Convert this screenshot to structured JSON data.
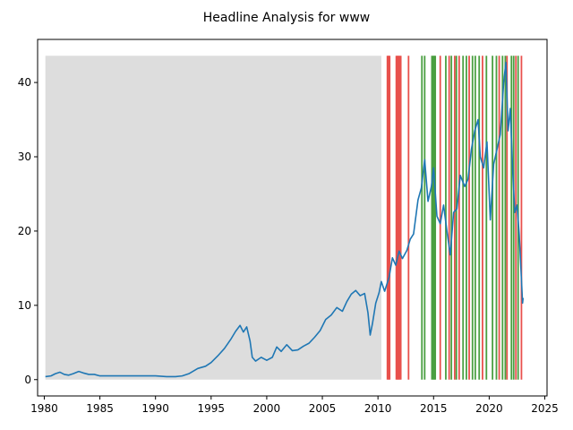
{
  "chart_data": {
    "type": "line",
    "title": "Headline Analysis for www",
    "xlabel": "",
    "ylabel": "",
    "xlim": [
      1979.4,
      2025.2
    ],
    "ylim": [
      -2.2,
      45.8
    ],
    "x_ticks": [
      1980,
      1985,
      1990,
      1995,
      2000,
      2005,
      2010,
      2015,
      2020,
      2025
    ],
    "y_ticks": [
      0,
      10,
      20,
      30,
      40
    ],
    "grid": false,
    "legend": "none",
    "gray_region": {
      "x_start": 1980.1,
      "x_end": 2010.3,
      "y_top": 43.6,
      "color": "#dddddd"
    },
    "red_lines": [
      2010.85,
      2010.95,
      2011.05,
      2011.65,
      2011.75,
      2011.85,
      2011.95,
      2012.05,
      2012.75,
      2015.6,
      2016.4,
      2016.9,
      2017.3,
      2018.2,
      2019.4,
      2020.9,
      2021.6,
      2022.4,
      2022.9
    ],
    "green_lines": [
      2013.95,
      2014.2,
      2014.85,
      2014.95,
      2015.05,
      2015.15,
      2016.1,
      2016.6,
      2017.05,
      2017.65,
      2017.95,
      2018.5,
      2018.75,
      2019.1,
      2019.75,
      2020.3,
      2020.65,
      2021.2,
      2021.45,
      2022.0,
      2022.2,
      2022.6
    ],
    "colors": {
      "line": "#1f77b4",
      "red": "#e8514d",
      "green": "#4a9f41",
      "gray": "#dddddd"
    },
    "series": [
      {
        "values": [
          [
            1980.1,
            0.4
          ],
          [
            1980.6,
            0.5
          ],
          [
            1981.0,
            0.8
          ],
          [
            1981.4,
            1.0
          ],
          [
            1981.8,
            0.7
          ],
          [
            1982.2,
            0.6
          ],
          [
            1982.6,
            0.8
          ],
          [
            1983.1,
            1.1
          ],
          [
            1983.5,
            0.9
          ],
          [
            1984.0,
            0.7
          ],
          [
            1984.5,
            0.7
          ],
          [
            1985.0,
            0.5
          ],
          [
            1986.0,
            0.5
          ],
          [
            1987.0,
            0.5
          ],
          [
            1988.0,
            0.5
          ],
          [
            1989.0,
            0.5
          ],
          [
            1990.0,
            0.5
          ],
          [
            1991.0,
            0.4
          ],
          [
            1991.8,
            0.4
          ],
          [
            1992.4,
            0.5
          ],
          [
            1993.0,
            0.8
          ],
          [
            1993.8,
            1.5
          ],
          [
            1994.5,
            1.8
          ],
          [
            1995.0,
            2.3
          ],
          [
            1995.6,
            3.2
          ],
          [
            1996.2,
            4.2
          ],
          [
            1996.8,
            5.5
          ],
          [
            1997.2,
            6.5
          ],
          [
            1997.6,
            7.3
          ],
          [
            1997.9,
            6.4
          ],
          [
            1998.2,
            7.1
          ],
          [
            1998.5,
            5.2
          ],
          [
            1998.7,
            3.0
          ],
          [
            1999.0,
            2.5
          ],
          [
            1999.5,
            3.0
          ],
          [
            2000.0,
            2.6
          ],
          [
            2000.5,
            3.0
          ],
          [
            2000.9,
            4.4
          ],
          [
            2001.3,
            3.8
          ],
          [
            2001.8,
            4.7
          ],
          [
            2002.3,
            3.9
          ],
          [
            2002.8,
            4.0
          ],
          [
            2003.3,
            4.5
          ],
          [
            2003.8,
            4.9
          ],
          [
            2004.3,
            5.7
          ],
          [
            2004.8,
            6.6
          ],
          [
            2005.3,
            8.1
          ],
          [
            2005.8,
            8.7
          ],
          [
            2006.3,
            9.7
          ],
          [
            2006.8,
            9.2
          ],
          [
            2007.2,
            10.5
          ],
          [
            2007.6,
            11.5
          ],
          [
            2008.0,
            12.0
          ],
          [
            2008.4,
            11.3
          ],
          [
            2008.8,
            11.6
          ],
          [
            2009.1,
            9.0
          ],
          [
            2009.3,
            6.0
          ],
          [
            2009.5,
            7.5
          ],
          [
            2009.8,
            10.3
          ],
          [
            2010.1,
            11.7
          ],
          [
            2010.3,
            13.2
          ],
          [
            2010.6,
            11.9
          ],
          [
            2011.0,
            13.8
          ],
          [
            2011.3,
            16.4
          ],
          [
            2011.6,
            15.4
          ],
          [
            2011.9,
            17.3
          ],
          [
            2012.2,
            16.3
          ],
          [
            2012.6,
            17.4
          ],
          [
            2012.9,
            18.9
          ],
          [
            2013.2,
            19.6
          ],
          [
            2013.6,
            24.2
          ],
          [
            2013.9,
            25.8
          ],
          [
            2014.2,
            29.6
          ],
          [
            2014.5,
            24.0
          ],
          [
            2014.8,
            26.0
          ],
          [
            2015.0,
            28.5
          ],
          [
            2015.3,
            22.0
          ],
          [
            2015.6,
            21.0
          ],
          [
            2015.9,
            23.5
          ],
          [
            2016.2,
            20.0
          ],
          [
            2016.5,
            16.8
          ],
          [
            2016.8,
            22.5
          ],
          [
            2017.1,
            23.0
          ],
          [
            2017.4,
            27.5
          ],
          [
            2017.8,
            26.0
          ],
          [
            2018.1,
            27.0
          ],
          [
            2018.4,
            31.0
          ],
          [
            2018.7,
            33.5
          ],
          [
            2019.0,
            35.0
          ],
          [
            2019.2,
            30.0
          ],
          [
            2019.5,
            28.5
          ],
          [
            2019.8,
            32.0
          ],
          [
            2020.1,
            21.5
          ],
          [
            2020.4,
            29.0
          ],
          [
            2020.7,
            31.0
          ],
          [
            2021.0,
            33.0
          ],
          [
            2021.3,
            40.0
          ],
          [
            2021.5,
            42.7
          ],
          [
            2021.7,
            33.5
          ],
          [
            2021.9,
            36.5
          ],
          [
            2022.1,
            28.5
          ],
          [
            2022.3,
            22.5
          ],
          [
            2022.5,
            23.5
          ],
          [
            2022.7,
            19.5
          ],
          [
            2022.85,
            15.0
          ],
          [
            2023.0,
            10.3
          ],
          [
            2023.05,
            11.0
          ]
        ]
      }
    ]
  }
}
